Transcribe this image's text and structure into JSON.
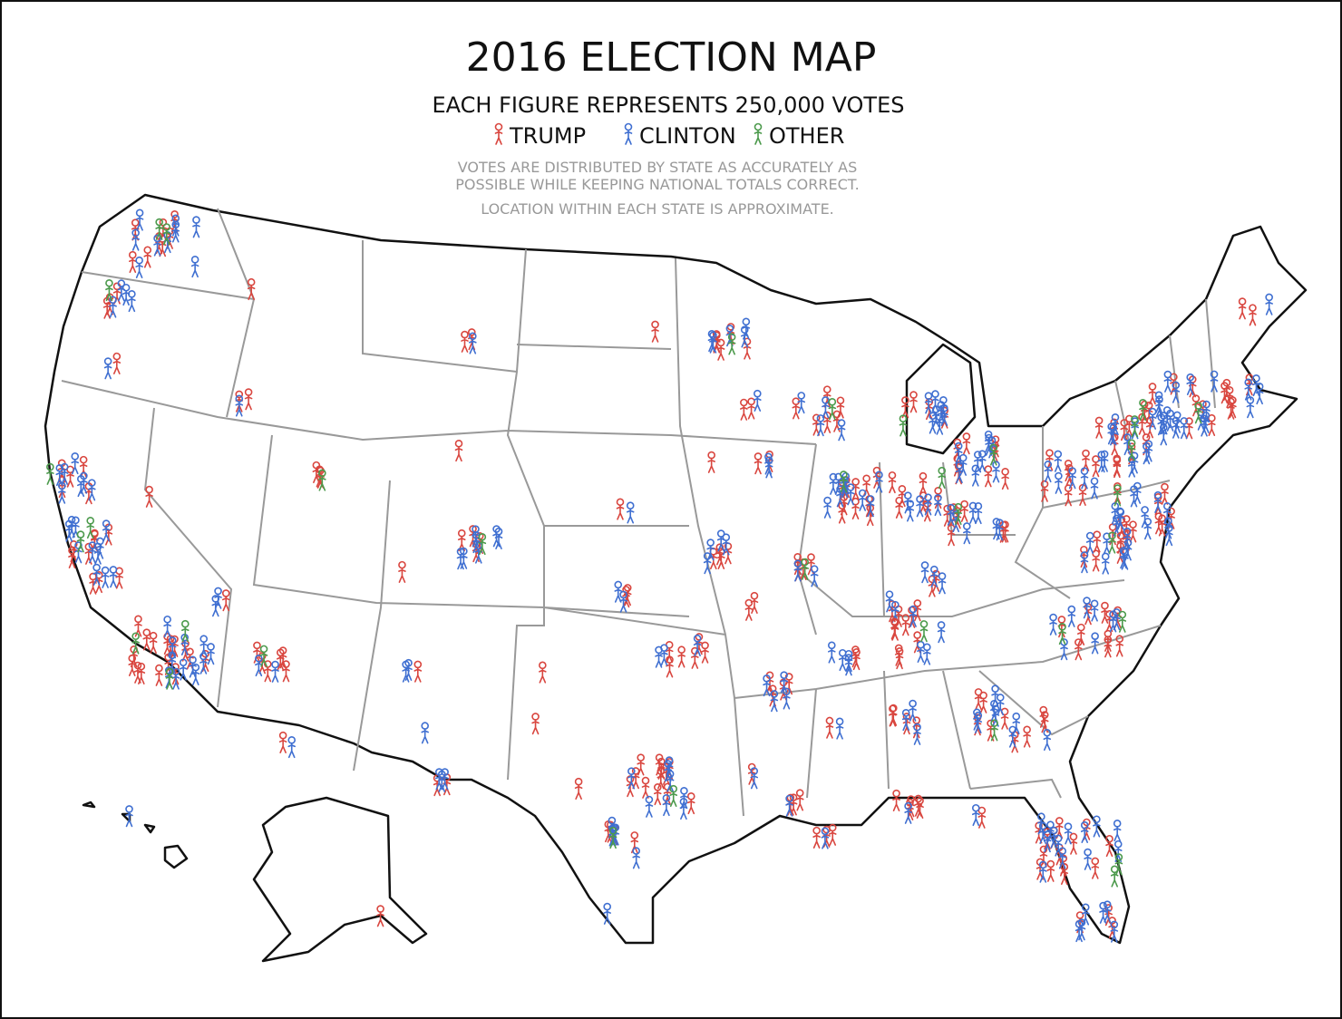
{
  "header": {
    "title": "2016 ELECTION MAP",
    "subtitle": "EACH FIGURE REPRESENTS 250,000 VOTES"
  },
  "legend": [
    {
      "label": "TRUMP",
      "color": "#d9463f"
    },
    {
      "label": "CLINTON",
      "color": "#3f6fd1"
    },
    {
      "label": "OTHER",
      "color": "#4c9a4c"
    }
  ],
  "notes": [
    "VOTES ARE DISTRIBUTED BY STATE AS ACCURATELY AS",
    "POSSIBLE WHILE KEEPING NATIONAL TOTALS CORRECT.",
    "LOCATION WITHIN EACH STATE IS APPROXIMATE."
  ]
}
